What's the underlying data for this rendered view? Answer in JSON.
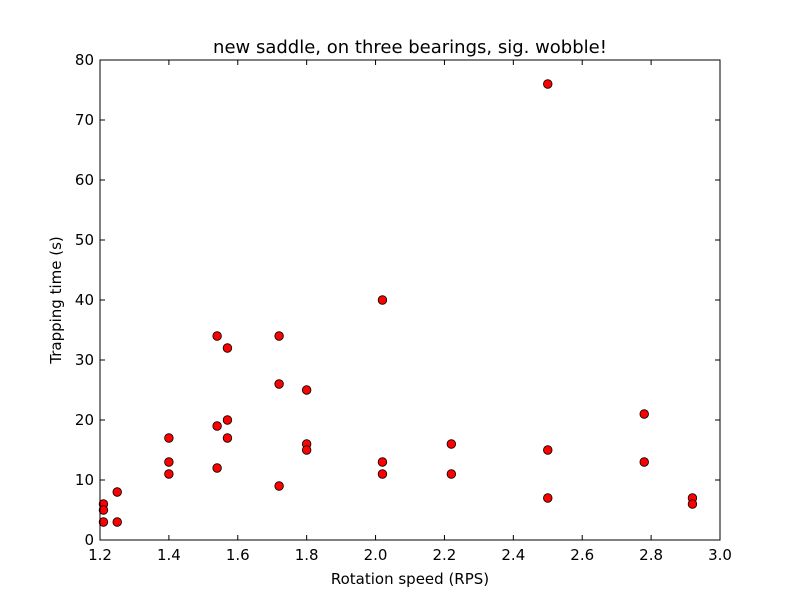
{
  "chart_data": {
    "type": "scatter",
    "title": "new saddle, on three bearings, sig. wobble!",
    "xlabel": "Rotation speed (RPS)",
    "ylabel": "Trapping time (s)",
    "xlim": [
      1.2,
      3.0
    ],
    "ylim": [
      0,
      80
    ],
    "xticks": [
      "1.2",
      "1.4",
      "1.6",
      "1.8",
      "2.0",
      "2.2",
      "2.4",
      "2.6",
      "2.8",
      "3.0"
    ],
    "yticks": [
      "0",
      "10",
      "20",
      "30",
      "40",
      "50",
      "60",
      "70",
      "80"
    ],
    "grid": false,
    "marker_color": "#ff0000",
    "marker_edge_color": "#000000",
    "points": [
      {
        "x": 1.21,
        "y": 6
      },
      {
        "x": 1.21,
        "y": 5
      },
      {
        "x": 1.21,
        "y": 3
      },
      {
        "x": 1.25,
        "y": 8
      },
      {
        "x": 1.25,
        "y": 3
      },
      {
        "x": 1.4,
        "y": 17
      },
      {
        "x": 1.4,
        "y": 13
      },
      {
        "x": 1.4,
        "y": 11
      },
      {
        "x": 1.54,
        "y": 34
      },
      {
        "x": 1.54,
        "y": 19
      },
      {
        "x": 1.54,
        "y": 12
      },
      {
        "x": 1.57,
        "y": 32
      },
      {
        "x": 1.57,
        "y": 20
      },
      {
        "x": 1.57,
        "y": 17
      },
      {
        "x": 1.72,
        "y": 34
      },
      {
        "x": 1.72,
        "y": 26
      },
      {
        "x": 1.72,
        "y": 9
      },
      {
        "x": 1.8,
        "y": 25
      },
      {
        "x": 1.8,
        "y": 16
      },
      {
        "x": 1.8,
        "y": 15
      },
      {
        "x": 2.02,
        "y": 40
      },
      {
        "x": 2.02,
        "y": 13
      },
      {
        "x": 2.02,
        "y": 11
      },
      {
        "x": 2.22,
        "y": 16
      },
      {
        "x": 2.22,
        "y": 11
      },
      {
        "x": 2.5,
        "y": 76
      },
      {
        "x": 2.5,
        "y": 15
      },
      {
        "x": 2.5,
        "y": 7
      },
      {
        "x": 2.78,
        "y": 21
      },
      {
        "x": 2.78,
        "y": 13
      },
      {
        "x": 2.92,
        "y": 7
      },
      {
        "x": 2.92,
        "y": 6
      }
    ]
  }
}
